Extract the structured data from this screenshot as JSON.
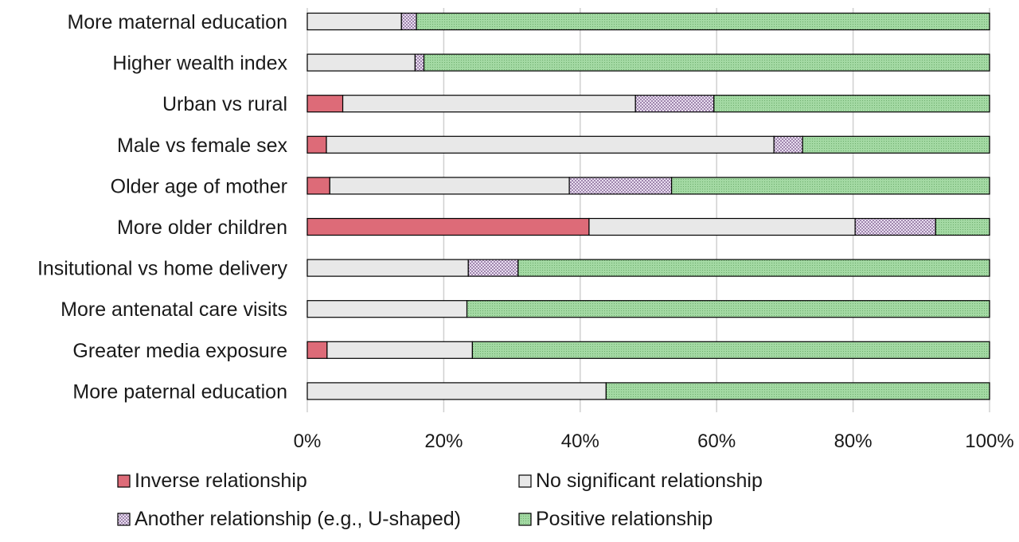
{
  "chart_data": {
    "type": "bar",
    "orientation": "horizontal",
    "stacked": "percent",
    "categories": [
      "More maternal education",
      "Higher wealth index",
      "Urban vs rural",
      "Male vs female sex",
      "Older age of mother",
      "More older children",
      "Insitutional vs home delivery",
      "More antenatal care visits",
      "Greater media exposure",
      "More paternal education"
    ],
    "series": [
      {
        "name": "Inverse relationship",
        "color": "#dd6b78",
        "pattern": "solid",
        "values": [
          0,
          0,
          5.2,
          2.8,
          3.3,
          41.3,
          0,
          0,
          2.9,
          0
        ]
      },
      {
        "name": "No significant relationship",
        "color": "#e8e8e8",
        "pattern": "solid",
        "values": [
          13.8,
          15.8,
          42.9,
          65.6,
          35.1,
          39.0,
          23.6,
          23.4,
          21.3,
          43.8
        ]
      },
      {
        "name": "Another relationship (e.g., U-shaped)",
        "color": "#d4c4dd",
        "pattern": "checker",
        "values": [
          2.2,
          1.3,
          11.5,
          4.2,
          15.0,
          11.8,
          7.3,
          0,
          0,
          0
        ]
      },
      {
        "name": "Positive relationship",
        "color": "#93cf93",
        "pattern": "dots",
        "values": [
          84.0,
          82.9,
          40.4,
          27.4,
          46.6,
          7.9,
          69.1,
          76.6,
          75.8,
          56.2
        ]
      }
    ],
    "x_ticks": [
      "0%",
      "20%",
      "40%",
      "60%",
      "80%",
      "100%"
    ],
    "xlim": [
      0,
      100
    ],
    "grid": "vertical",
    "legend_position": "bottom"
  }
}
